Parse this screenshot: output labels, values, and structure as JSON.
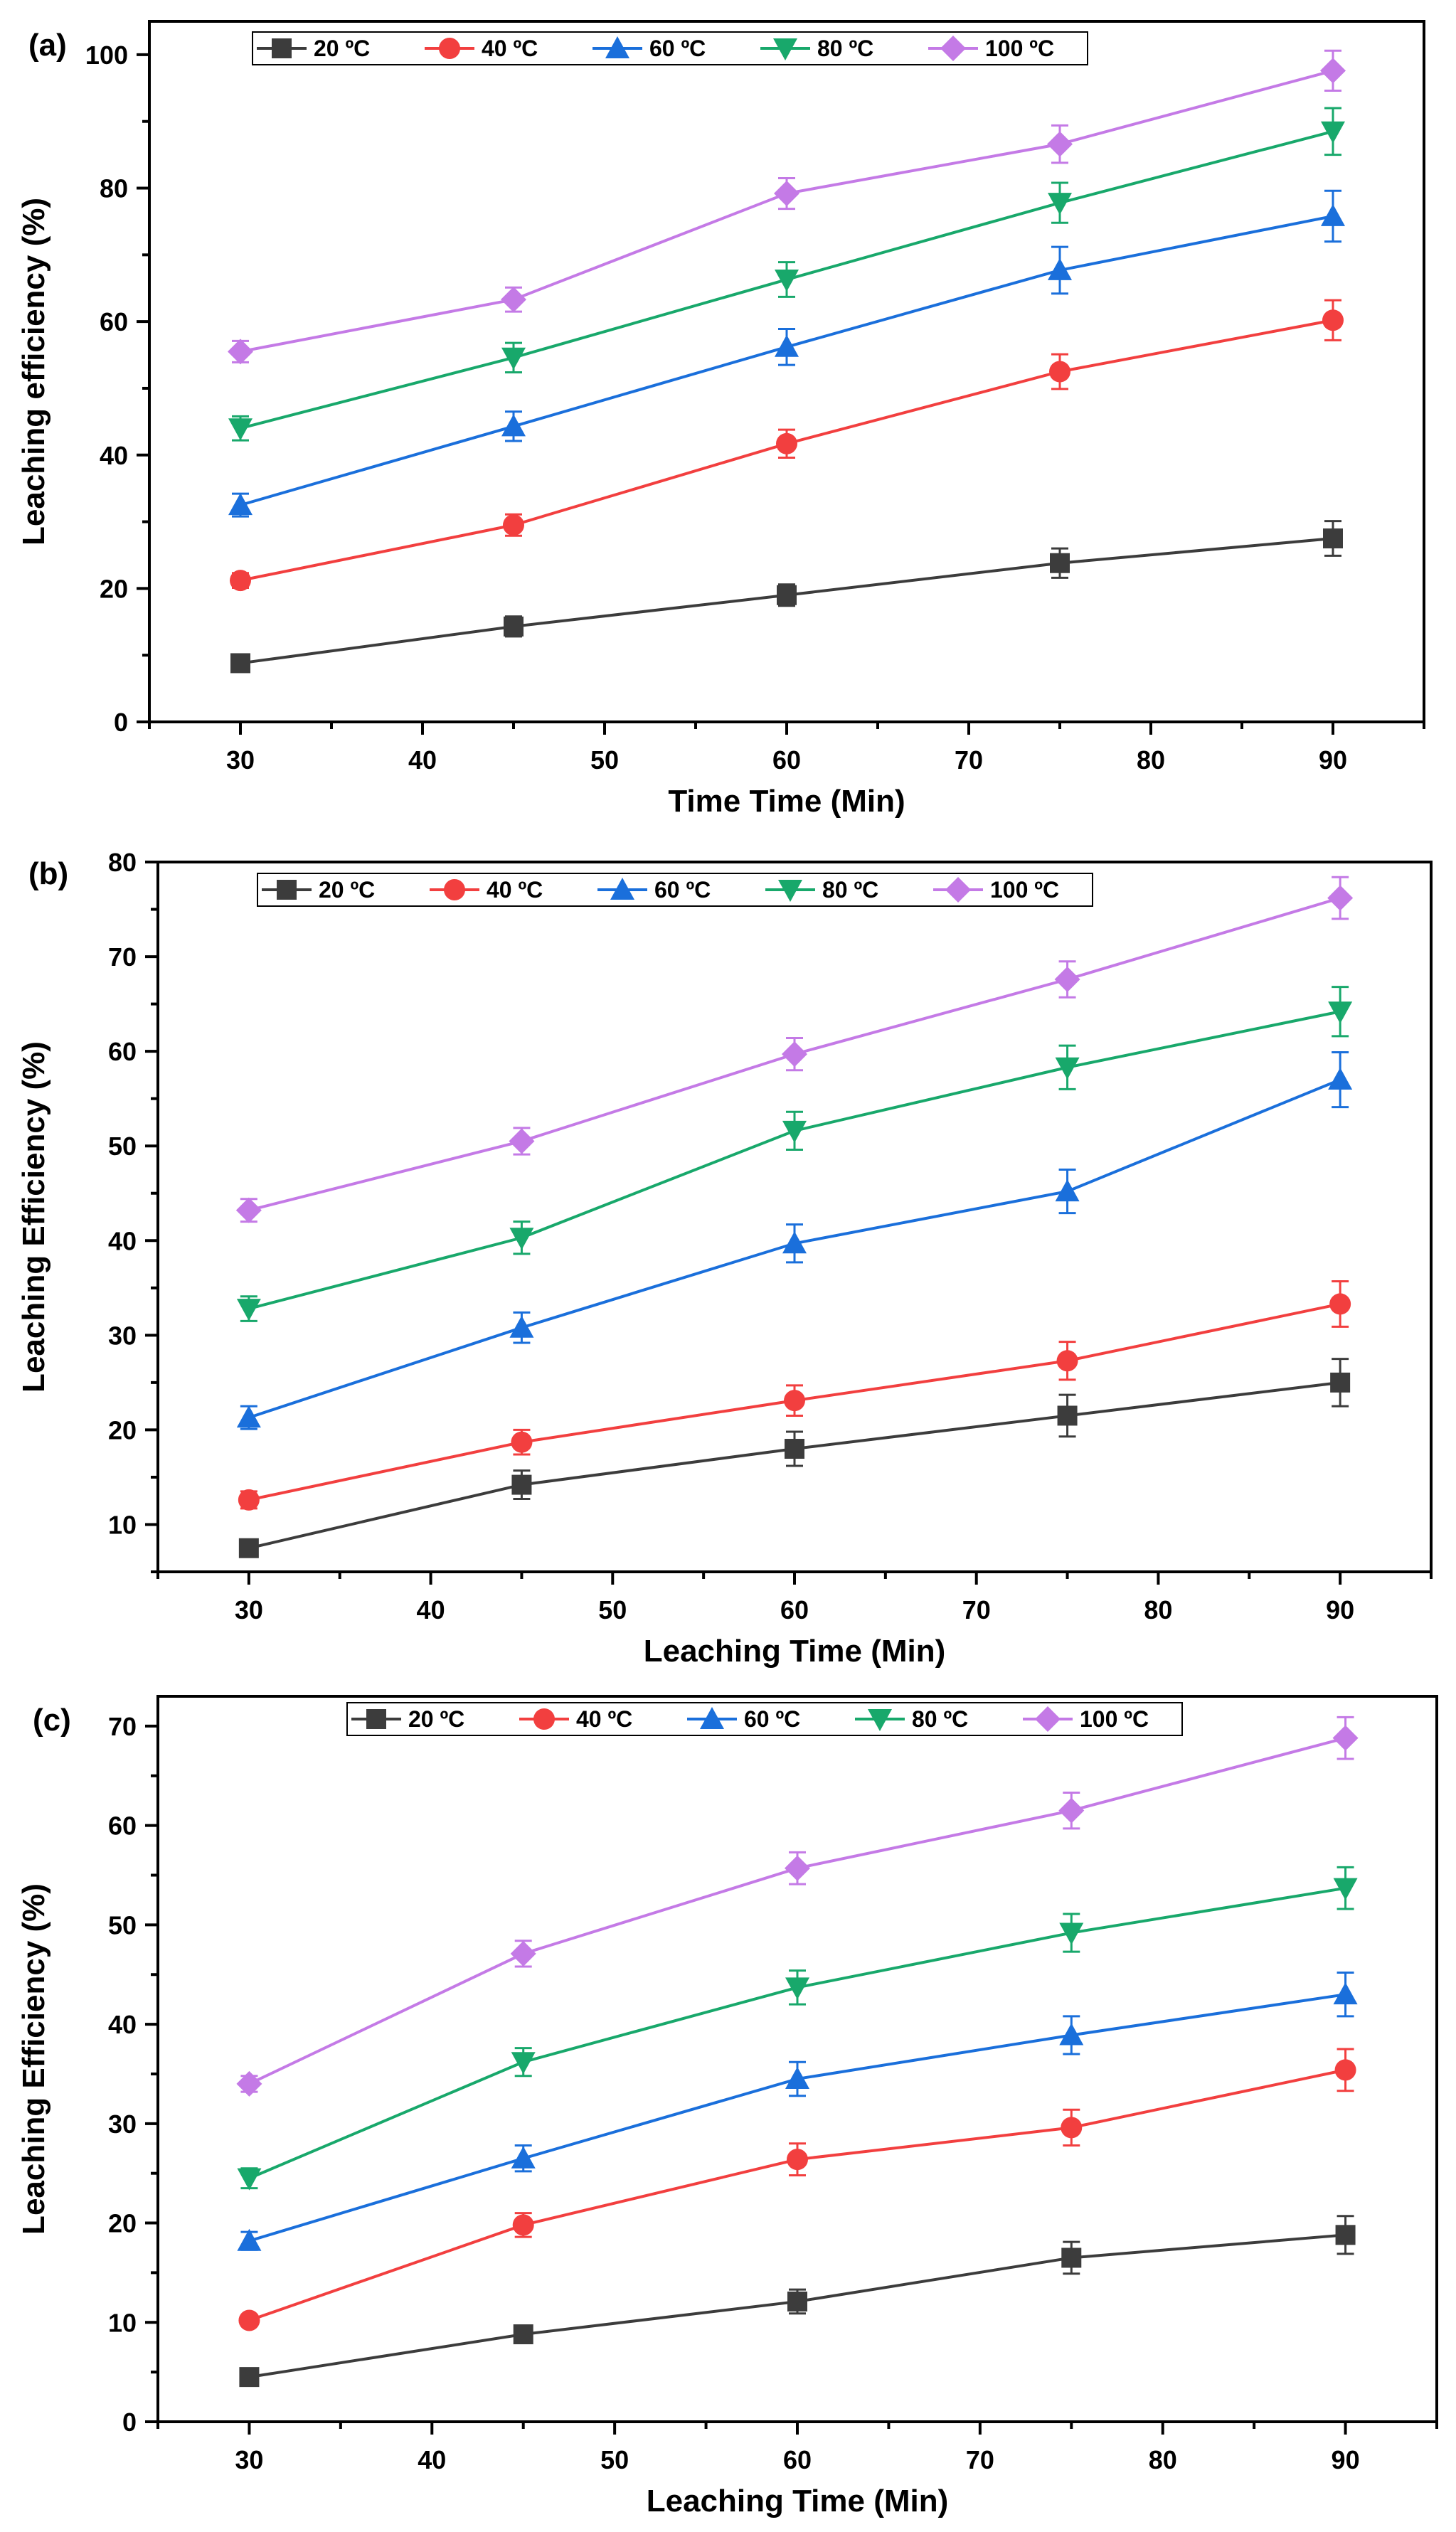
{
  "figure": {
    "series_colors": [
      "#3c3c3c",
      "#f23f3f",
      "#1a6fdb",
      "#18a86b",
      "#c47ae6"
    ],
    "series_markers": [
      "square",
      "circle",
      "triangle-up",
      "triangle-down",
      "diamond"
    ]
  },
  "chart_data": [
    {
      "panel_label": "(a)",
      "type": "line",
      "x": [
        30,
        45,
        60,
        75,
        90
      ],
      "series": [
        {
          "name": "20 ºC",
          "values": [
            8.8,
            14.3,
            19.0,
            23.8,
            27.5
          ],
          "errors": [
            0.9,
            1.5,
            1.6,
            2.2,
            2.6
          ]
        },
        {
          "name": "40 ºC",
          "values": [
            21.2,
            29.5,
            41.7,
            52.5,
            60.2
          ],
          "errors": [
            1.1,
            1.6,
            2.1,
            2.6,
            3.0
          ]
        },
        {
          "name": "60 ºC",
          "values": [
            32.5,
            44.3,
            56.2,
            67.7,
            75.8
          ],
          "errors": [
            1.7,
            2.2,
            2.7,
            3.5,
            3.8
          ]
        },
        {
          "name": "80 ºC",
          "values": [
            44.0,
            54.6,
            66.3,
            77.8,
            88.5
          ],
          "errors": [
            1.8,
            2.2,
            2.6,
            3.0,
            3.5
          ]
        },
        {
          "name": "100 ºC",
          "values": [
            55.5,
            63.3,
            79.2,
            86.6,
            97.6
          ],
          "errors": [
            1.6,
            1.8,
            2.3,
            2.8,
            3.0
          ]
        }
      ],
      "xlabel": "Time Time (Min)",
      "ylabel": "Leaching efficiency (%)",
      "xlim": [
        25,
        95
      ],
      "ylim": [
        0,
        105
      ],
      "xticks": [
        30,
        40,
        50,
        60,
        70,
        80,
        90
      ],
      "yticks": [
        0,
        20,
        40,
        60,
        80,
        100
      ],
      "legend_position": "top-left"
    },
    {
      "panel_label": "(b)",
      "type": "line",
      "x": [
        30,
        45,
        60,
        75,
        90
      ],
      "series": [
        {
          "name": "20 ºC",
          "values": [
            7.5,
            14.2,
            18.0,
            21.5,
            25.0
          ],
          "errors": [
            0.7,
            1.5,
            1.8,
            2.2,
            2.5
          ]
        },
        {
          "name": "40 ºC",
          "values": [
            12.6,
            18.7,
            23.1,
            27.3,
            33.3
          ],
          "errors": [
            0.9,
            1.3,
            1.6,
            2.0,
            2.4
          ]
        },
        {
          "name": "60 ºC",
          "values": [
            21.3,
            30.8,
            39.7,
            45.2,
            57.0
          ],
          "errors": [
            1.2,
            1.6,
            2.0,
            2.3,
            2.9
          ]
        },
        {
          "name": "80 ºC",
          "values": [
            32.8,
            40.3,
            51.6,
            58.3,
            64.2
          ],
          "errors": [
            1.3,
            1.7,
            2.0,
            2.3,
            2.6
          ]
        },
        {
          "name": "100 ºC",
          "values": [
            43.2,
            50.5,
            59.7,
            67.6,
            76.2
          ],
          "errors": [
            1.2,
            1.4,
            1.7,
            1.9,
            2.2
          ]
        }
      ],
      "xlabel": "Leaching Time (Min)",
      "ylabel": "Leaching Efficiency (%)",
      "xlim": [
        25,
        95
      ],
      "ylim": [
        5,
        80
      ],
      "xticks": [
        30,
        40,
        50,
        60,
        70,
        80,
        90
      ],
      "yticks": [
        10,
        20,
        30,
        40,
        50,
        60,
        70,
        80
      ],
      "legend_position": "top-left"
    },
    {
      "panel_label": "(c)",
      "type": "line",
      "x": [
        30,
        45,
        60,
        75,
        90
      ],
      "series": [
        {
          "name": "20 ºC",
          "values": [
            4.5,
            8.8,
            12.1,
            16.5,
            18.8
          ],
          "errors": [
            0.4,
            0.8,
            1.2,
            1.6,
            1.9
          ]
        },
        {
          "name": "40 ºC",
          "values": [
            10.2,
            19.8,
            26.4,
            29.6,
            35.4
          ],
          "errors": [
            0.5,
            1.2,
            1.6,
            1.8,
            2.1
          ]
        },
        {
          "name": "60 ºC",
          "values": [
            18.2,
            26.5,
            34.5,
            38.9,
            43.0
          ],
          "errors": [
            0.9,
            1.3,
            1.7,
            1.9,
            2.2
          ]
        },
        {
          "name": "80 ºC",
          "values": [
            24.5,
            36.2,
            43.7,
            49.2,
            53.7
          ],
          "errors": [
            1.0,
            1.4,
            1.7,
            1.9,
            2.1
          ]
        },
        {
          "name": "100 ºC",
          "values": [
            34.0,
            47.1,
            55.7,
            61.5,
            68.8
          ],
          "errors": [
            0.8,
            1.3,
            1.6,
            1.8,
            2.1
          ]
        }
      ],
      "xlabel": "Leaching Time (Min)",
      "ylabel": "Leaching Efficiency (%)",
      "xlim": [
        25,
        95
      ],
      "ylim": [
        0,
        73
      ],
      "xticks": [
        30,
        40,
        50,
        60,
        70,
        80,
        90
      ],
      "yticks": [
        0,
        10,
        20,
        30,
        40,
        50,
        60,
        70
      ],
      "legend_position": "top-left"
    }
  ]
}
